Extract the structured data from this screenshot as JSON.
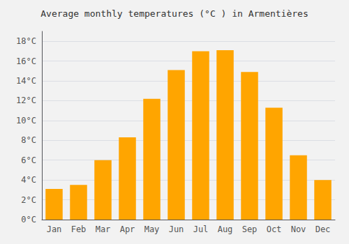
{
  "chart_data": {
    "type": "bar",
    "title": "Average monthly temperatures (°C ) in Armentières",
    "categories": [
      "Jan",
      "Feb",
      "Mar",
      "Apr",
      "May",
      "Jun",
      "Jul",
      "Aug",
      "Sep",
      "Oct",
      "Nov",
      "Dec"
    ],
    "values": [
      3.1,
      3.5,
      6.0,
      8.3,
      12.2,
      15.1,
      17.0,
      17.1,
      14.9,
      11.3,
      6.5,
      4.0
    ],
    "color": "#FFA500",
    "ylim": [
      0,
      19
    ],
    "yticks": [
      {
        "value": 0,
        "label": "0°C"
      },
      {
        "value": 2,
        "label": "2°C"
      },
      {
        "value": 4,
        "label": "4°C"
      },
      {
        "value": 6,
        "label": "6°C"
      },
      {
        "value": 8,
        "label": "8°C"
      },
      {
        "value": 10,
        "label": "10°C"
      },
      {
        "value": 12,
        "label": "12°C"
      },
      {
        "value": 14,
        "label": "14°C"
      },
      {
        "value": 16,
        "label": "16°C"
      },
      {
        "value": 18,
        "label": "18°C"
      }
    ],
    "grid": true
  }
}
